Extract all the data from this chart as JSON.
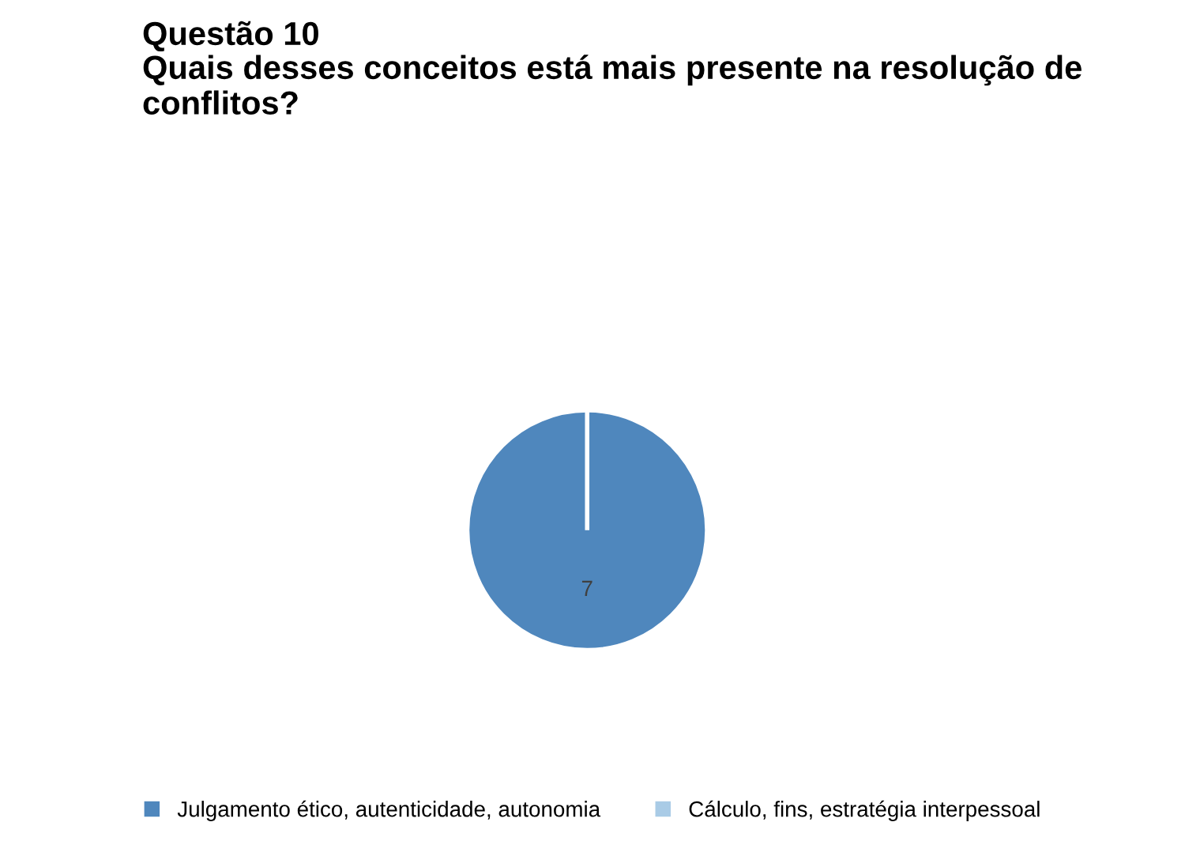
{
  "chart_data": {
    "type": "pie",
    "title": "Questão 10",
    "subtitle": "Quais desses conceitos está mais presente na resolução de conflitos?",
    "categories": [
      "Julgamento ético, autenticidade, autonomia",
      "Cálculo, fins, estratégia interpessoal"
    ],
    "values": [
      7,
      0
    ],
    "colors": [
      "#4f87bd",
      "#a9cbe6"
    ],
    "data_labels": true,
    "legend": "bottom"
  }
}
